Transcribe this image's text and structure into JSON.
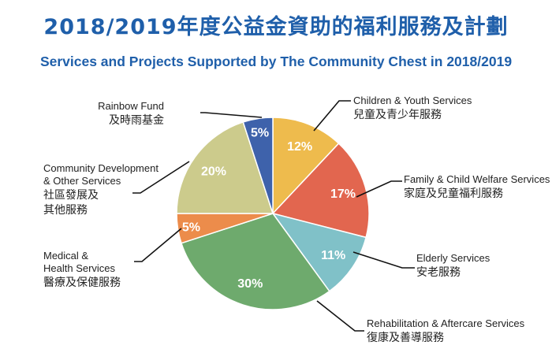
{
  "title_zh": "2018/2019年度公益金資助的福利服務及計劃",
  "title_en": "Services and Projects Supported by The Community Chest in 2018/2019",
  "chart_data": {
    "type": "pie",
    "title": "2018/2019年度公益金資助的福利服務及計劃",
    "subtitle": "Services and Projects Supported by The Community Chest in 2018/2019",
    "start": "12 o'clock, clockwise",
    "slices": [
      {
        "label_en": "Children & Youth Services",
        "label_zh": "兒童及青少年服務",
        "value": 12,
        "value_label": "12%",
        "color": "#eebb4d"
      },
      {
        "label_en": "Family & Child Welfare Services",
        "label_zh": "家庭及兒童福利服務",
        "value": 17,
        "value_label": "17%",
        "color": "#e2664f"
      },
      {
        "label_en": "Elderly Services",
        "label_zh": "安老服務",
        "value": 11,
        "value_label": "11%",
        "color": "#80c1c8"
      },
      {
        "label_en": "Rehabilitation & Aftercare Services",
        "label_zh": "復康及善導服務",
        "value": 30,
        "value_label": "30%",
        "color": "#6eaa6d"
      },
      {
        "label_en": "Medical & Health Services",
        "label_zh": "醫療及保健服務",
        "value": 5,
        "value_label": "5%",
        "color": "#ec8c4b"
      },
      {
        "label_en": "Community Development & Other Services",
        "label_zh": "社區發展及其他服務",
        "value": 20,
        "value_label": "20%",
        "color": "#cccb8c"
      },
      {
        "label_en": "Rainbow Fund",
        "label_zh": "及時雨基金",
        "value": 5,
        "value_label": "5%",
        "color": "#3e62ab"
      }
    ]
  },
  "labels": {
    "children": {
      "en": [
        "Children & Youth Services"
      ],
      "zh": [
        "兒童及青少年服務"
      ]
    },
    "family": {
      "en": [
        "Family & Child Welfare Services"
      ],
      "zh": [
        "家庭及兒童福利服務"
      ]
    },
    "elderly": {
      "en": [
        "Elderly Services"
      ],
      "zh": [
        "安老服務"
      ]
    },
    "rehab": {
      "en": [
        "Rehabilitation & Aftercare Services"
      ],
      "zh": [
        "復康及善導服務"
      ]
    },
    "medical": {
      "en": [
        "Medical &",
        "Health Services"
      ],
      "zh": [
        "醫療及保健服務"
      ]
    },
    "community": {
      "en": [
        "Community Development",
        "& Other Services"
      ],
      "zh": [
        "社區發展及",
        "其他服務"
      ]
    },
    "rainbow": {
      "en": [
        "Rainbow Fund"
      ],
      "zh": [
        "及時雨基金"
      ]
    }
  }
}
